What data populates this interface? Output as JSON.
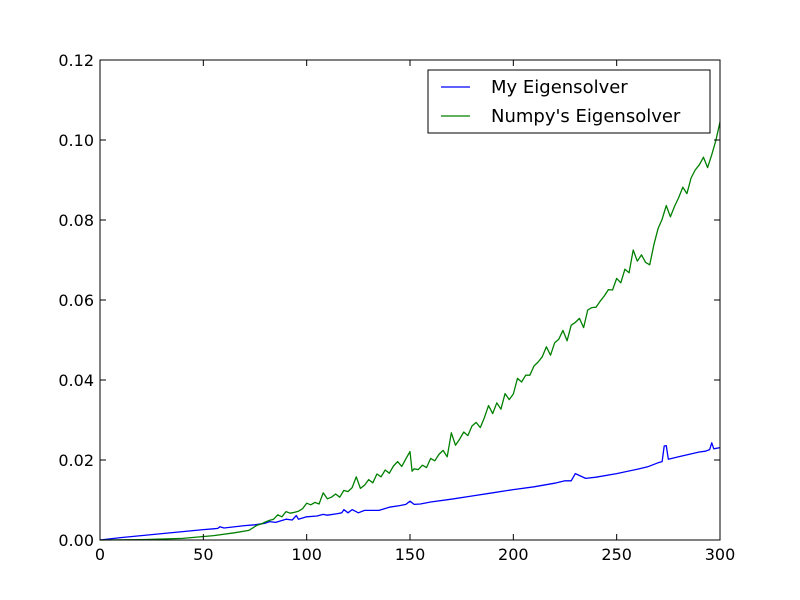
{
  "chart_data": {
    "type": "line",
    "title": "",
    "xlabel": "",
    "ylabel": "",
    "xlim": [
      0,
      300
    ],
    "ylim": [
      0,
      0.12
    ],
    "xticks": [
      "0",
      "50",
      "100",
      "150",
      "200",
      "250",
      "300"
    ],
    "yticks": [
      "0.00",
      "0.02",
      "0.04",
      "0.06",
      "0.08",
      "0.10",
      "0.12"
    ],
    "grid": false,
    "legend_position": "top-right",
    "series": [
      {
        "name": "My Eigensolver",
        "color": "#0000ff",
        "x": [
          0,
          10,
          20,
          30,
          40,
          50,
          55,
          57,
          58,
          60,
          70,
          75,
          80,
          82,
          85,
          90,
          93,
          95,
          96,
          100,
          105,
          108,
          110,
          115,
          117,
          118,
          120,
          122,
          125,
          128,
          130,
          135,
          140,
          145,
          148,
          150,
          152,
          155,
          160,
          170,
          180,
          190,
          200,
          210,
          220,
          225,
          228,
          230,
          235,
          240,
          250,
          260,
          265,
          270,
          272,
          273,
          274,
          275,
          280,
          285,
          290,
          293,
          295,
          296,
          297,
          300
        ],
        "y": [
          0.0,
          0.0006,
          0.0011,
          0.0016,
          0.0021,
          0.0026,
          0.0028,
          0.0029,
          0.0033,
          0.003,
          0.0036,
          0.0038,
          0.0042,
          0.0046,
          0.0044,
          0.0052,
          0.005,
          0.0061,
          0.0052,
          0.0058,
          0.006,
          0.0064,
          0.0062,
          0.0066,
          0.0068,
          0.0076,
          0.0068,
          0.0076,
          0.0068,
          0.0074,
          0.0074,
          0.0074,
          0.0082,
          0.0086,
          0.0089,
          0.0097,
          0.0089,
          0.009,
          0.0095,
          0.0102,
          0.011,
          0.0118,
          0.0126,
          0.0133,
          0.0142,
          0.0148,
          0.0148,
          0.0166,
          0.0154,
          0.0157,
          0.0166,
          0.0177,
          0.0183,
          0.0193,
          0.0196,
          0.0235,
          0.0236,
          0.0202,
          0.0208,
          0.0214,
          0.022,
          0.0222,
          0.0226,
          0.0243,
          0.0228,
          0.0231
        ]
      },
      {
        "name": "Numpy's Eigensolver",
        "color": "#008000",
        "x": [
          0,
          20,
          40,
          55,
          65,
          72,
          76,
          78,
          80,
          82,
          84,
          86,
          88,
          90,
          92,
          94,
          96,
          98,
          100,
          102,
          104,
          106,
          108,
          110,
          112,
          114,
          116,
          118,
          120,
          122,
          124,
          126,
          128,
          130,
          132,
          134,
          136,
          138,
          140,
          142,
          144,
          146,
          148,
          150,
          151,
          152,
          154,
          156,
          158,
          160,
          162,
          164,
          166,
          168,
          170,
          172,
          174,
          176,
          178,
          180,
          182,
          184,
          186,
          188,
          190,
          192,
          194,
          196,
          198,
          200,
          202,
          204,
          206,
          208,
          210,
          212,
          214,
          216,
          218,
          220,
          222,
          224,
          226,
          228,
          230,
          232,
          234,
          236,
          238,
          240,
          242,
          244,
          246,
          248,
          250,
          252,
          254,
          256,
          258,
          260,
          262,
          264,
          266,
          268,
          270,
          272,
          274,
          276,
          278,
          280,
          282,
          284,
          286,
          288,
          290,
          292,
          294,
          296,
          298,
          300
        ],
        "y": [
          0.0,
          0.0001,
          0.0004,
          0.0011,
          0.0018,
          0.0024,
          0.0037,
          0.004,
          0.0045,
          0.0049,
          0.0052,
          0.0063,
          0.0058,
          0.0071,
          0.0067,
          0.0069,
          0.0072,
          0.0078,
          0.0092,
          0.0088,
          0.0094,
          0.009,
          0.0118,
          0.0103,
          0.0107,
          0.0115,
          0.0107,
          0.0124,
          0.0121,
          0.0131,
          0.0158,
          0.0129,
          0.0137,
          0.0151,
          0.0143,
          0.0165,
          0.0158,
          0.0175,
          0.0167,
          0.0185,
          0.0196,
          0.0184,
          0.0203,
          0.0221,
          0.0172,
          0.0178,
          0.0176,
          0.0187,
          0.0181,
          0.0204,
          0.0198,
          0.0214,
          0.0224,
          0.0208,
          0.0268,
          0.0237,
          0.0252,
          0.027,
          0.0261,
          0.0285,
          0.0294,
          0.0281,
          0.0306,
          0.0336,
          0.0316,
          0.0343,
          0.0327,
          0.0366,
          0.0351,
          0.0365,
          0.0404,
          0.0395,
          0.0412,
          0.0412,
          0.0435,
          0.0445,
          0.0458,
          0.0483,
          0.0462,
          0.0493,
          0.0502,
          0.0524,
          0.0498,
          0.0537,
          0.0544,
          0.0554,
          0.0531,
          0.0575,
          0.0581,
          0.0582,
          0.0597,
          0.061,
          0.0626,
          0.0625,
          0.0654,
          0.0643,
          0.0677,
          0.0668,
          0.0725,
          0.0697,
          0.0713,
          0.0694,
          0.0688,
          0.0738,
          0.0778,
          0.0802,
          0.0836,
          0.0808,
          0.0834,
          0.0856,
          0.0882,
          0.0866,
          0.0905,
          0.0925,
          0.0938,
          0.0957,
          0.0931,
          0.0963,
          0.0999,
          0.1045
        ]
      }
    ]
  }
}
